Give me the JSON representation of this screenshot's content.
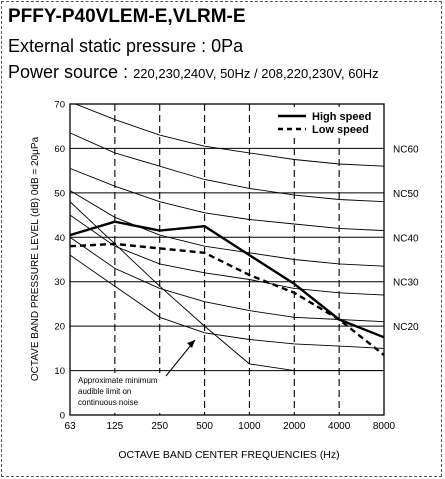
{
  "header": {
    "model": "PFFY-P40VLEM-E,VLRM-E",
    "static_pressure": "External static pressure : 0Pa",
    "power_label": "Power source :",
    "power_spec": "220,230,240V, 50Hz / 208,220,230V, 60Hz"
  },
  "chart_data": {
    "type": "line",
    "xlabel": "OCTAVE  BAND  CENTER  FREQUENCIES (Hz)",
    "ylabel": "OCTAVE BAND PRESSURE LEVEL (dB) 0dB = 20μPa",
    "x_ticks": [
      "63",
      "125",
      "250",
      "500",
      "1000",
      "2000",
      "4000",
      "8000"
    ],
    "y_ticks": [
      0,
      10,
      20,
      30,
      40,
      50,
      60,
      70
    ],
    "ylim": [
      0,
      70
    ],
    "x_scale": "log (octave bands)",
    "grid": true,
    "legend_position": "top-right",
    "annotation": "Approximate minimum audible limit on continuous noise",
    "series": [
      {
        "name": "High speed",
        "style": "solid-thick",
        "values": [
          40.5,
          43.5,
          41.5,
          42.5,
          36,
          29.5,
          21.5,
          17.5
        ]
      },
      {
        "name": "Low speed",
        "style": "dashed-thick",
        "values": [
          38,
          38.5,
          37.5,
          36.5,
          31.5,
          27.5,
          21.5,
          13.5
        ]
      }
    ],
    "nc_labels": [
      {
        "label": "NC60",
        "value": 60
      },
      {
        "label": "NC50",
        "value": 50
      },
      {
        "label": "NC40",
        "value": 40
      },
      {
        "label": "NC30",
        "value": 30
      },
      {
        "label": "NC20",
        "value": 20
      }
    ],
    "nc_curves": [
      [
        70.5,
        66.5,
        63,
        60.5,
        59,
        57.5,
        56.5,
        56
      ],
      [
        63.5,
        59,
        56,
        53,
        51,
        49.5,
        48.5,
        48
      ],
      [
        55.5,
        51.5,
        48,
        45.5,
        44,
        43,
        42,
        41.5
      ],
      [
        50.5,
        44.5,
        40.5,
        38,
        36.5,
        35,
        34,
        33.5
      ],
      [
        45,
        38,
        34,
        32,
        30.5,
        28.5,
        27.5,
        27
      ],
      [
        40,
        33,
        28.5,
        25.5,
        23.5,
        22,
        21.5,
        21
      ],
      [
        36,
        29,
        22,
        18.5,
        17,
        16,
        15.5,
        15
      ]
    ],
    "min_audible_curve": [
      48,
      38.5,
      29,
      20,
      11.5,
      10,
      10,
      10
    ],
    "colors": {
      "lines": "#000000",
      "background": "#ffffff"
    },
    "legend": {
      "high": "High speed",
      "low": "Low speed"
    }
  }
}
